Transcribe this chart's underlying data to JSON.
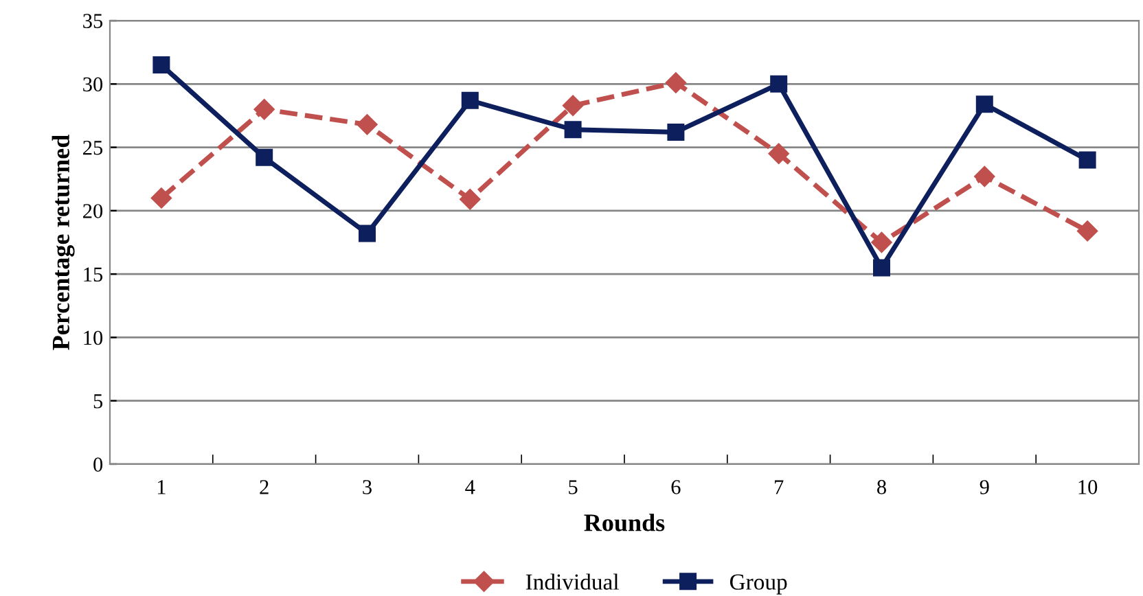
{
  "chart_data": {
    "type": "line",
    "xlabel": "Rounds",
    "ylabel": "Percentage returned",
    "categories": [
      "1",
      "2",
      "3",
      "4",
      "5",
      "6",
      "7",
      "8",
      "9",
      "10"
    ],
    "series": [
      {
        "name": "Individual",
        "color": "#c0504d",
        "marker": "diamond",
        "line_style": "dashed",
        "values": [
          21.0,
          28.0,
          26.8,
          20.9,
          28.3,
          30.1,
          24.5,
          17.5,
          22.7,
          18.4
        ]
      },
      {
        "name": "Group",
        "color": "#0d1f5c",
        "marker": "square",
        "line_style": "solid",
        "values": [
          31.5,
          24.2,
          18.2,
          28.7,
          26.4,
          26.2,
          30.0,
          15.5,
          28.4,
          24.0
        ]
      }
    ],
    "ylim": [
      0,
      35
    ],
    "yticks": [
      0,
      5,
      10,
      15,
      20,
      25,
      30,
      35
    ],
    "grid": "y",
    "legend": "bottom"
  }
}
